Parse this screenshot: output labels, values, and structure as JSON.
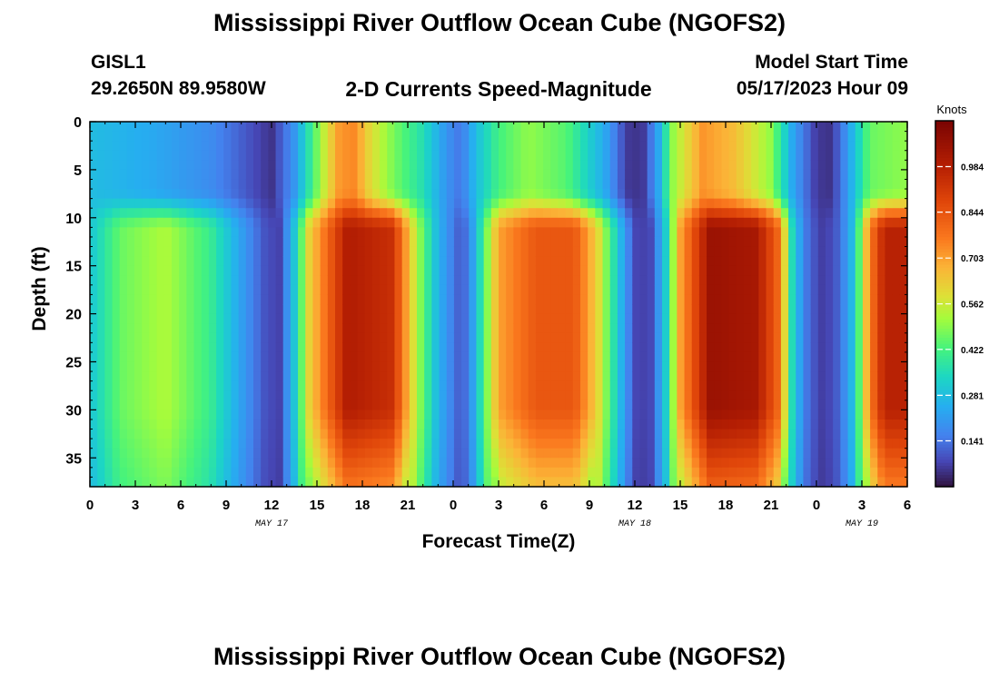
{
  "header": {
    "title": "Mississippi River Outflow Ocean Cube (NGOFS2)",
    "station_id": "GISL1",
    "station_coords": "29.2650N  89.9580W",
    "plot_name": "2-D Currents Speed-Magnitude",
    "model_start_label": "Model Start Time",
    "model_start_value": "05/17/2023 Hour 09"
  },
  "footer": {
    "title": "Mississippi River Outflow Ocean Cube (NGOFS2)"
  },
  "chart_data": {
    "type": "heatmap",
    "xlabel": "Forecast Time(Z)",
    "ylabel": "Depth (ft)",
    "x_range_hours": [
      0,
      54
    ],
    "y_range": [
      0,
      38
    ],
    "y_inverted": true,
    "x_tick_labels": [
      "0",
      "3",
      "6",
      "9",
      "12",
      "15",
      "18",
      "21",
      "0",
      "3",
      "6",
      "9",
      "12",
      "15",
      "18",
      "21",
      "0",
      "3",
      "6"
    ],
    "y_ticks": [
      0,
      5,
      10,
      15,
      20,
      25,
      30,
      35
    ],
    "date_labels": [
      {
        "label": "MAY 17",
        "hour": 12
      },
      {
        "label": "MAY 18",
        "hour": 36
      },
      {
        "label": "MAY 19",
        "hour": 51
      }
    ],
    "colorbar": {
      "units": "Knots",
      "min": 0,
      "max": 1.125,
      "tick_labels": [
        "0.141",
        "0.281",
        "0.422",
        "0.562",
        "0.703",
        "0.844",
        "0.984"
      ],
      "colormap": "turbo"
    },
    "surface_speed_knots": [
      [
        0,
        0.28
      ],
      [
        4,
        0.24
      ],
      [
        8,
        0.18
      ],
      [
        11,
        0.08
      ],
      [
        12,
        0.05
      ],
      [
        13.5,
        0.2
      ],
      [
        15.5,
        0.56
      ],
      [
        16.5,
        0.72
      ],
      [
        17.5,
        0.74
      ],
      [
        18.5,
        0.6
      ],
      [
        20,
        0.48
      ],
      [
        22,
        0.36
      ],
      [
        23.5,
        0.2
      ],
      [
        24.5,
        0.14
      ],
      [
        25.5,
        0.28
      ],
      [
        27,
        0.42
      ],
      [
        29,
        0.5
      ],
      [
        31.5,
        0.44
      ],
      [
        34,
        0.24
      ],
      [
        35.5,
        0.06
      ],
      [
        36.5,
        0.05
      ],
      [
        37.5,
        0.22
      ],
      [
        38.5,
        0.5
      ],
      [
        40.5,
        0.72
      ],
      [
        42.5,
        0.66
      ],
      [
        45,
        0.5
      ],
      [
        46.5,
        0.22
      ],
      [
        48,
        0.06
      ],
      [
        49,
        0.05
      ],
      [
        50,
        0.2
      ],
      [
        51.5,
        0.46
      ],
      [
        54,
        0.5
      ]
    ],
    "subsurface_speed_knots": [
      [
        0,
        0.3
      ],
      [
        2,
        0.46
      ],
      [
        5,
        0.53
      ],
      [
        8,
        0.4
      ],
      [
        10,
        0.22
      ],
      [
        11.5,
        0.1
      ],
      [
        12.5,
        0.07
      ],
      [
        13.5,
        0.3
      ],
      [
        14.5,
        0.62
      ],
      [
        17,
        1.0
      ],
      [
        20,
        0.94
      ],
      [
        21.5,
        0.55
      ],
      [
        23,
        0.26
      ],
      [
        24.3,
        0.12
      ],
      [
        25,
        0.14
      ],
      [
        26,
        0.42
      ],
      [
        27,
        0.7
      ],
      [
        29.5,
        0.84
      ],
      [
        32,
        0.84
      ],
      [
        33.5,
        0.62
      ],
      [
        35,
        0.28
      ],
      [
        36,
        0.08
      ],
      [
        37,
        0.07
      ],
      [
        38,
        0.3
      ],
      [
        39,
        0.7
      ],
      [
        41,
        1.05
      ],
      [
        44,
        1.02
      ],
      [
        45.5,
        0.8
      ],
      [
        46.5,
        0.3
      ],
      [
        47.5,
        0.12
      ],
      [
        48.5,
        0.06
      ],
      [
        49.5,
        0.12
      ],
      [
        50.5,
        0.3
      ],
      [
        51.5,
        0.75
      ],
      [
        52.5,
        0.98
      ],
      [
        54,
        0.98
      ]
    ]
  }
}
